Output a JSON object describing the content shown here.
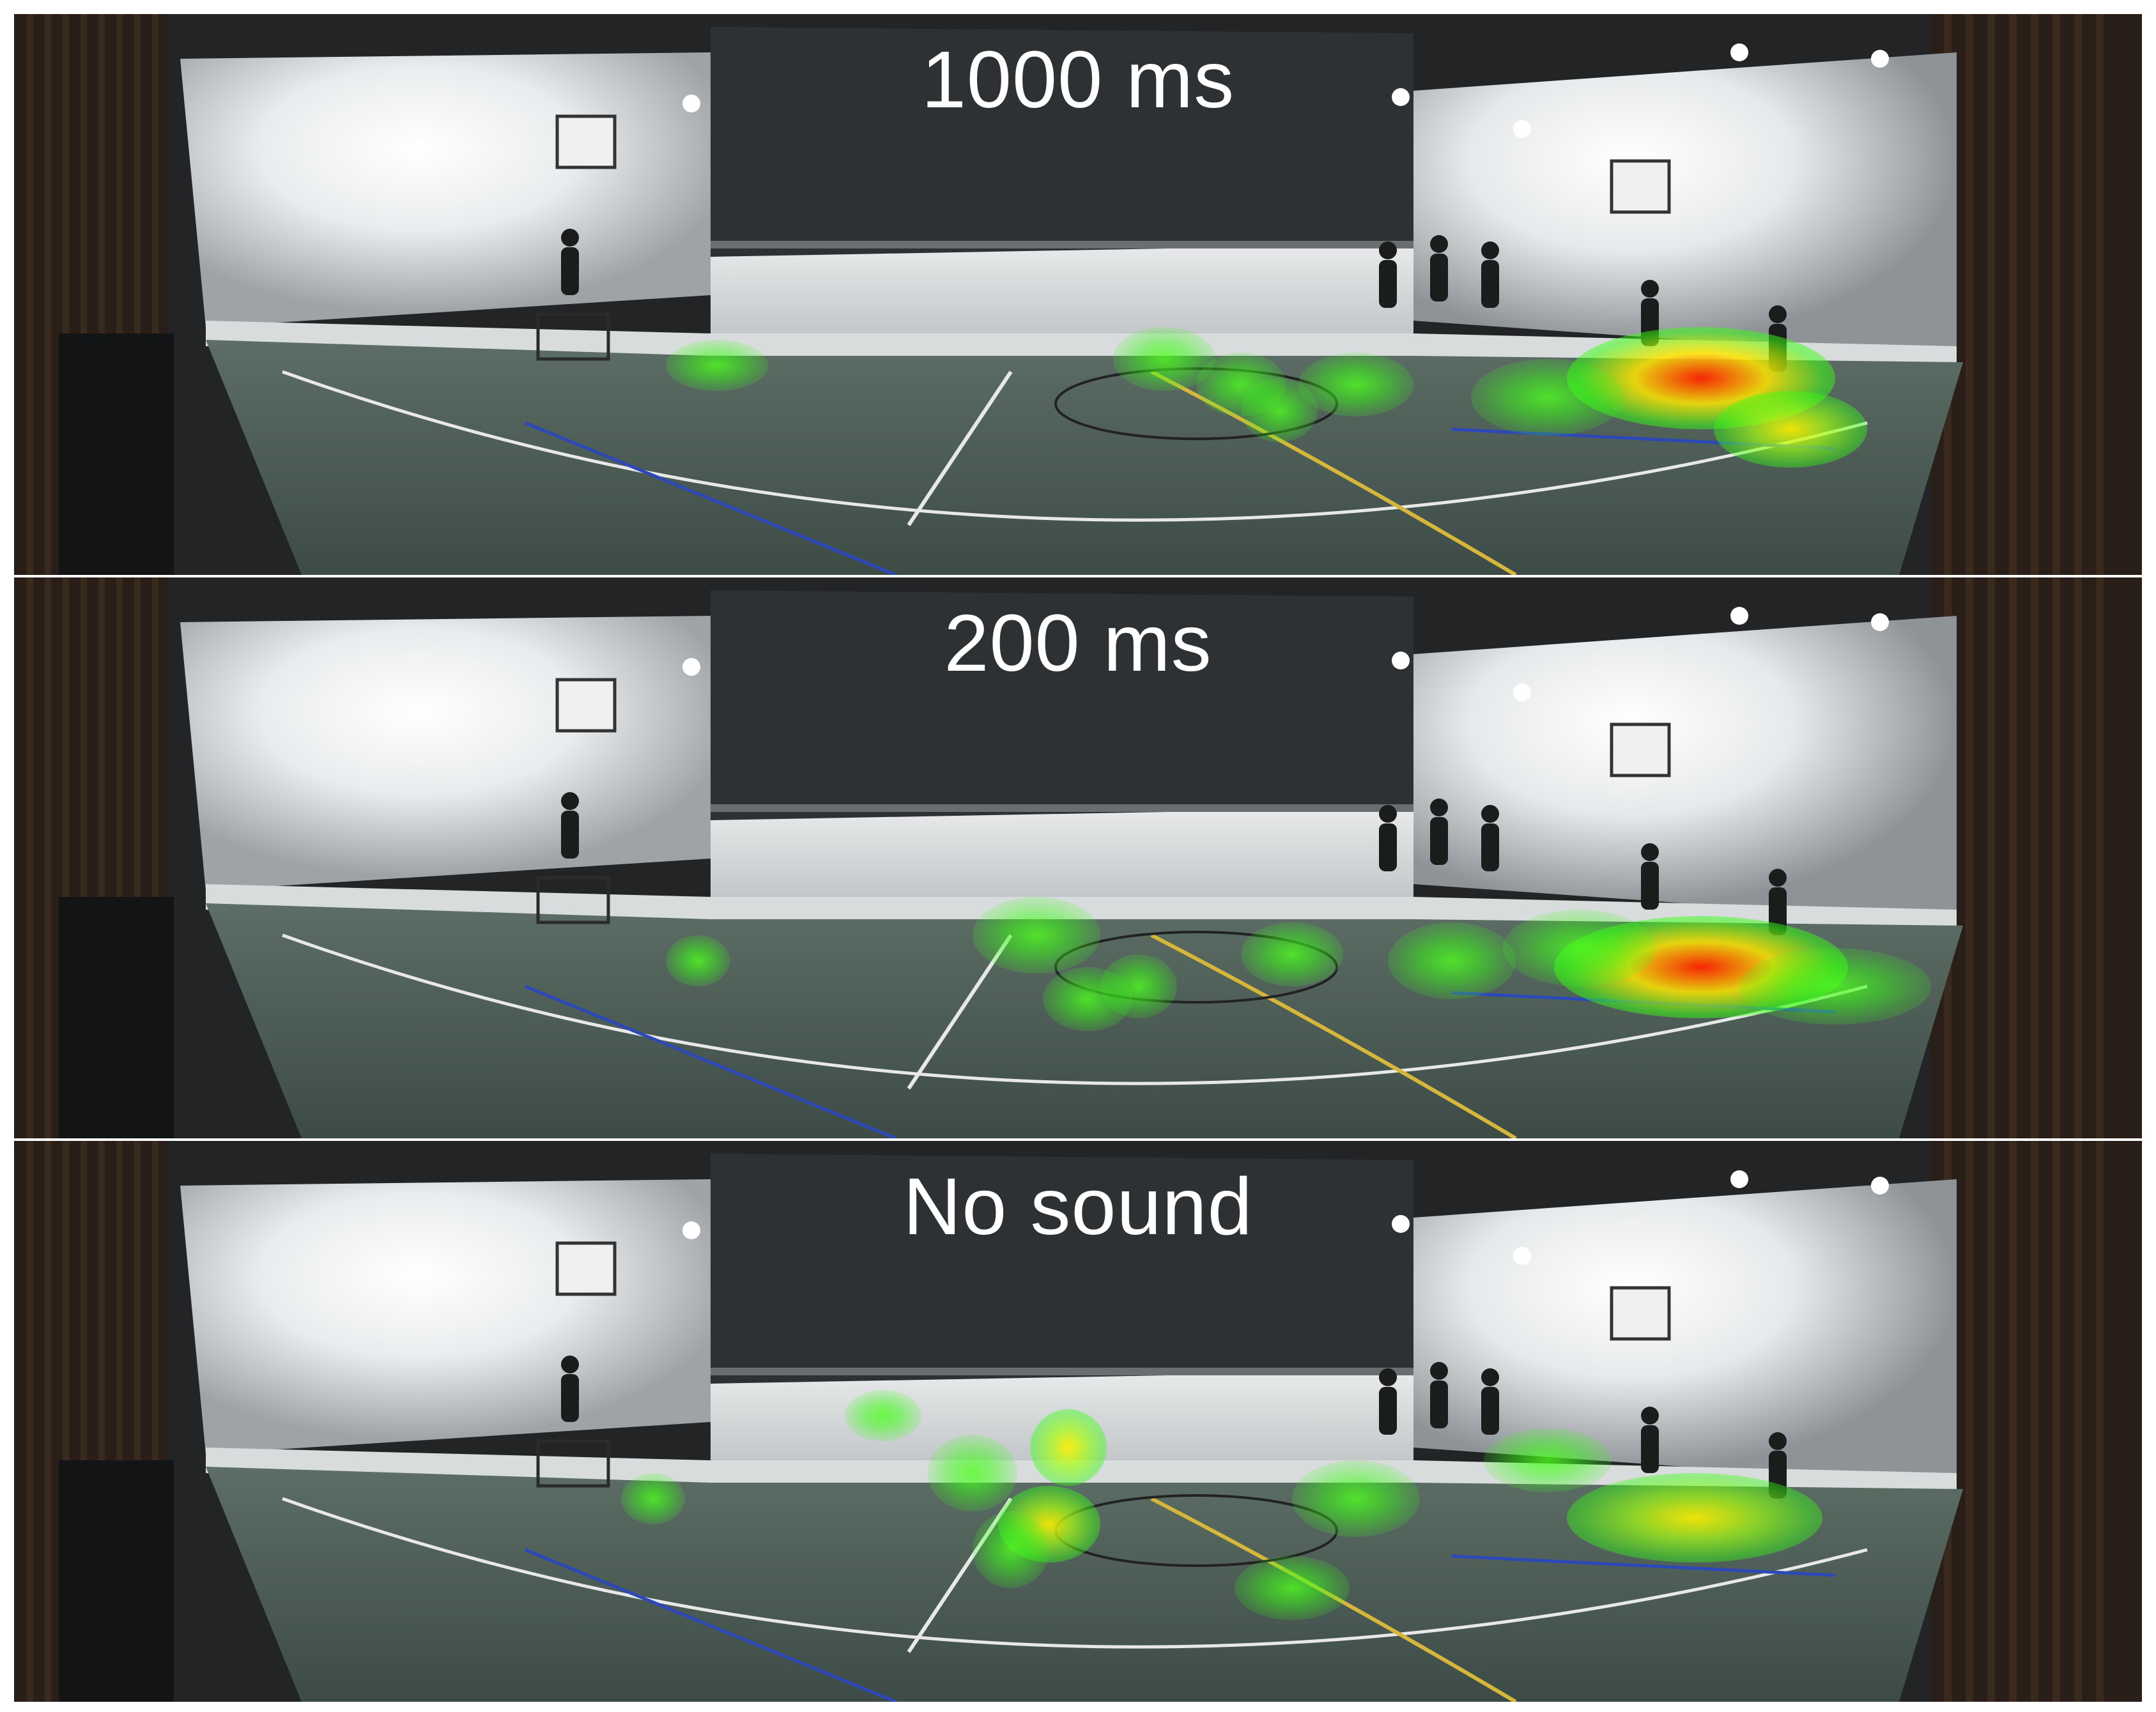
{
  "panels": [
    {
      "label": "1000 ms"
    },
    {
      "label": "200 ms"
    },
    {
      "label": "No sound"
    }
  ],
  "heatmap_colors": {
    "low": "#39ff14",
    "mid": "#ffff00",
    "high": "#ff2200"
  }
}
